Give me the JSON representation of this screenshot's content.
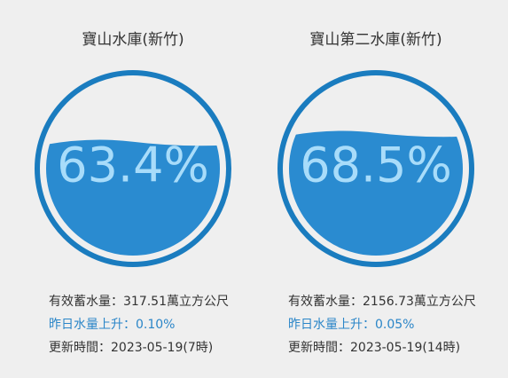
{
  "gauges": [
    {
      "title": "寶山水庫(新竹)",
      "percent": "63.4%",
      "storage": "有效蓄水量：317.51萬立方公尺",
      "change": "昨日水量上升：0.10%",
      "updated": "更新時間：2023-05-19(7時)"
    },
    {
      "title": "寶山第二水庫(新竹)",
      "percent": "68.5%",
      "storage": "有效蓄水量：2156.73萬立方公尺",
      "change": "昨日水量上升：0.05%",
      "updated": "更新時間：2023-05-19(14時)"
    }
  ]
}
